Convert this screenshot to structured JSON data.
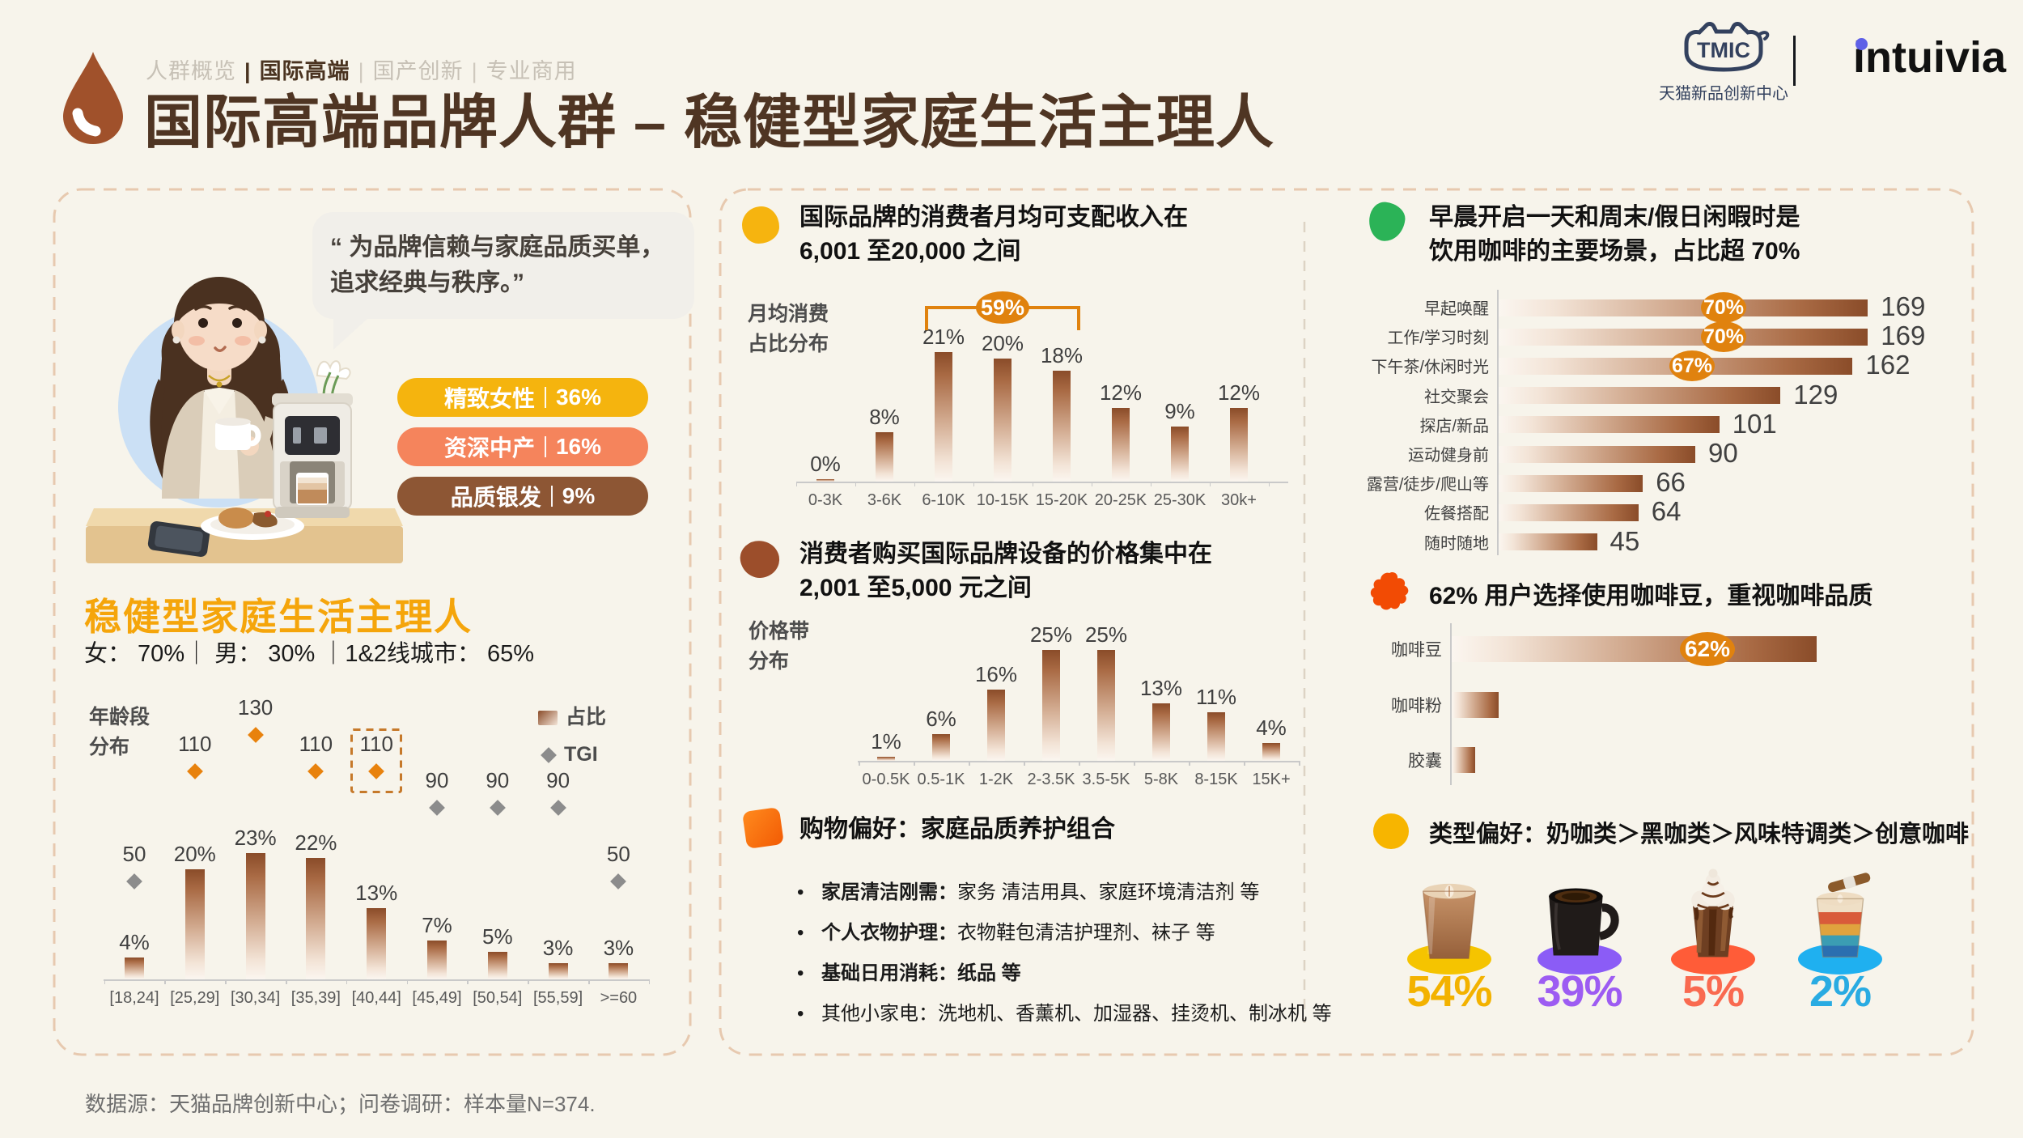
{
  "header": {
    "nav": {
      "items": [
        "人群概览",
        "国际高端",
        "国产创新",
        "专业商用"
      ],
      "active": "国际高端",
      "separator": "|"
    },
    "title": "国际高端品牌人群 – 稳健型家庭生活主理人",
    "logos": {
      "tmic": "TMIC",
      "tmic_caption": "天猫新品创新中心",
      "partner": "intuivia"
    }
  },
  "left_panel": {
    "quote": "“  为品牌信赖与家庭品质买单，\n追求经典与秩序。”",
    "pills": [
      {
        "label": "精致女性",
        "value": "36%",
        "color": "#F5B40E"
      },
      {
        "label": "资深中产",
        "value": "16%",
        "color": "#F5845C"
      },
      {
        "label": "品质银发",
        "value": "9%",
        "color": "#8D5634"
      }
    ],
    "persona_title": "稳健型家庭生活主理人",
    "demographics": "女： 70%｜ 男： 30% ｜1&2线城市： 65%"
  },
  "middle_panel": {
    "income_headline": "国际品牌的消费者月均可支配收入在\n6,001 至20,000 之间",
    "price_headline": "消费者购买国际品牌设备的价格集中在\n2,001 至5,000 元之间",
    "shopping_headline": "购物偏好：家庭品质养护组合",
    "shopping_items": [
      {
        "lead": "家居清洁刚需：",
        "rest": "家务 清洁用具、家庭环境清洁剂 等"
      },
      {
        "lead": "个人衣物护理：",
        "rest": "衣物鞋包清洁护理剂、袜子 等"
      },
      {
        "lead": "基础日用消耗：纸品 等",
        "rest": ""
      },
      {
        "lead": "",
        "rest": "其他小家电：洗地机、香薰机、加湿器、挂烫机、制冰机 等"
      }
    ]
  },
  "right_panel": {
    "scene_headline": "早晨开启一天和周末/假日闲暇时是\n饮用咖啡的主要场景，占比超 70%",
    "bean_headline": "62% 用户选择使用咖啡豆，重视咖啡品质",
    "type_headline": "类型偏好：奶咖类＞黑咖类＞风味特调类＞创意咖啡"
  },
  "footer": {
    "source": "数据源：天猫品牌创新中心；问卷调研：样本量N=374."
  },
  "chart_data": [
    {
      "id": "age",
      "type": "bar",
      "title": "年龄段\n分布",
      "categories": [
        "[18,24]",
        "[25,29]",
        "[30,34]",
        "[35,39]",
        "[40,44]",
        "[45,49]",
        "[50,54]",
        "[55,59]",
        ">=60"
      ],
      "series": [
        {
          "name": "占比",
          "values": [
            4,
            20,
            23,
            22,
            13,
            7,
            5,
            3,
            3
          ],
          "unit": "%"
        },
        {
          "name": "TGI",
          "values": [
            50,
            110,
            130,
            110,
            110,
            90,
            90,
            90,
            50
          ]
        }
      ],
      "legend": [
        "占比",
        "TGI"
      ],
      "highlight_category": "[40,44]",
      "tgi_accent_color": "#E8820D",
      "tgi_gray_color": "#8C8C8C"
    },
    {
      "id": "income",
      "type": "bar",
      "title": "月均消费\n占比分布",
      "categories": [
        "0-3K",
        "3-6K",
        "6-10K",
        "10-15K",
        "15-20K",
        "20-25K",
        "25-30K",
        "30k+"
      ],
      "values": [
        0,
        8,
        21,
        20,
        18,
        12,
        9,
        12
      ],
      "unit": "%",
      "annotation": {
        "label": "59%",
        "from": "6-10K",
        "to": "15-20K"
      }
    },
    {
      "id": "price",
      "type": "bar",
      "title": "价格带\n分布",
      "categories": [
        "0-0.5K",
        "0.5-1K",
        "1-2K",
        "2-3.5K",
        "3.5-5K",
        "5-8K",
        "8-15K",
        "15K+"
      ],
      "values": [
        1,
        6,
        16,
        25,
        25,
        13,
        11,
        4
      ],
      "unit": "%"
    },
    {
      "id": "scenes",
      "type": "bar-horizontal",
      "categories": [
        "早起唤醒",
        "工作/学习时刻",
        "下午茶/休闲时光",
        "社交聚会",
        "探店/新品",
        "运动健身前",
        "露营/徒步/爬山等",
        "佐餐搭配",
        "随时随地"
      ],
      "values": [
        169,
        169,
        162,
        129,
        101,
        90,
        66,
        64,
        45
      ],
      "badges": [
        {
          "category": "早起唤醒",
          "label": "70%"
        },
        {
          "category": "工作/学习时刻",
          "label": "70%"
        },
        {
          "category": "下午茶/休闲时光",
          "label": "67%"
        }
      ]
    },
    {
      "id": "bean",
      "type": "bar-horizontal",
      "categories": [
        "咖啡豆",
        "咖啡粉",
        "胶囊"
      ],
      "values": [
        62,
        8,
        4
      ],
      "unit": "%",
      "badges": [
        {
          "category": "咖啡豆",
          "label": "62%"
        }
      ]
    },
    {
      "id": "types",
      "type": "pictogram",
      "categories": [
        "奶咖类",
        "黑咖类",
        "风味特调类",
        "创意咖啡"
      ],
      "values": [
        54,
        39,
        5,
        2
      ],
      "unit": "%",
      "labels": [
        "54%",
        "39%",
        "5%",
        "2%"
      ],
      "colors": [
        "#F3B200",
        "#9D5CF2",
        "#F96A50",
        "#29ABE2"
      ],
      "shadow_colors": [
        "#F5C400",
        "#8B5CF6",
        "#FF5C38",
        "#1FB0F0"
      ]
    }
  ]
}
